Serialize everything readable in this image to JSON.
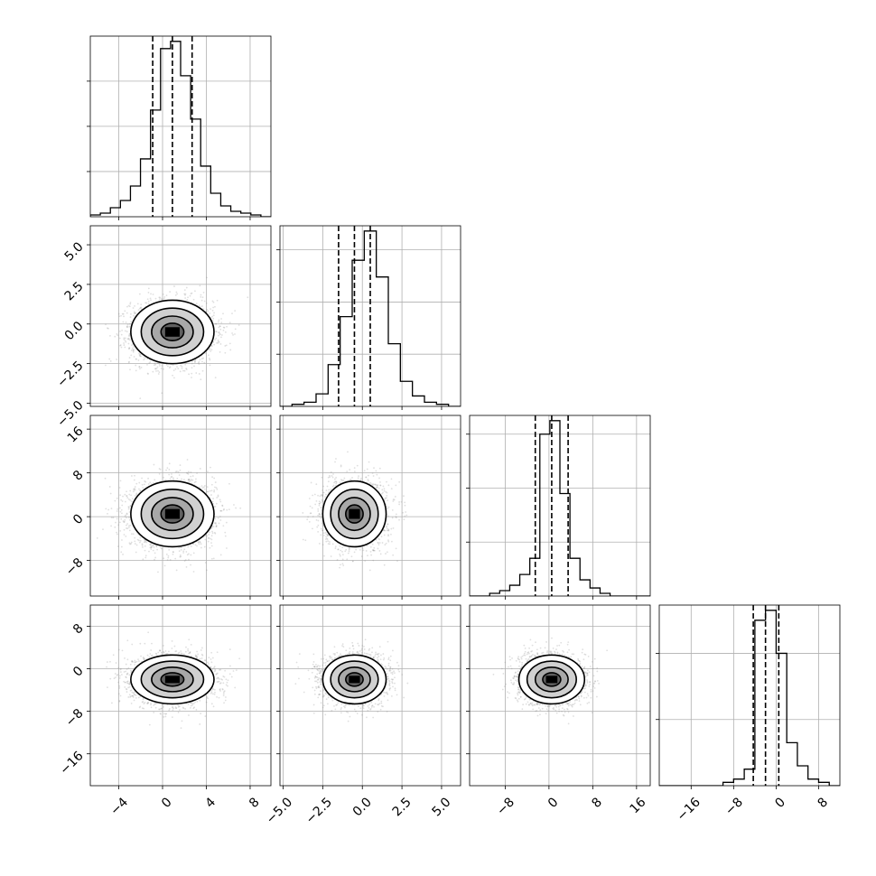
{
  "chart_data": {
    "type": "corner",
    "grid": true,
    "colors": {
      "ink": "#000000",
      "grid": "#b0b0b0",
      "scatter": "#8c8c8c"
    },
    "quantiles": [
      0.16,
      0.5,
      0.84
    ],
    "parameters": [
      {
        "range": [
          -6.6,
          9.9
        ],
        "ticks": [
          -4,
          0,
          4,
          8
        ],
        "tick_labels": [
          "−4",
          "0",
          "4",
          "8"
        ],
        "mean": 0.9,
        "sd": 1.9,
        "quantile_values": [
          -0.9,
          0.9,
          2.7
        ],
        "hist_counts": [
          1,
          2,
          5,
          9,
          17,
          32,
          59,
          93,
          97,
          78,
          54,
          28,
          13,
          6,
          3,
          2,
          1,
          0
        ]
      },
      {
        "range": [
          -5.2,
          6.2
        ],
        "ticks": [
          -5.0,
          -2.5,
          0.0,
          2.5,
          5.0
        ],
        "tick_labels": [
          "−5.0",
          "−2.5",
          "0.0",
          "2.5",
          "5.0"
        ],
        "mean": -0.5,
        "sd": 1.0,
        "quantile_values": [
          -1.5,
          -0.5,
          0.5
        ],
        "hist_counts": [
          0,
          1,
          2,
          6,
          20,
          43,
          70,
          84,
          62,
          30,
          12,
          5,
          2,
          1,
          0
        ]
      },
      {
        "range": [
          -14.5,
          18.5
        ],
        "ticks": [
          -8,
          0,
          8,
          16
        ],
        "tick_labels": [
          "−8",
          "0",
          "8",
          "16"
        ],
        "mean": 0.5,
        "sd": 3.0,
        "quantile_values": [
          -2.5,
          0.5,
          3.5
        ],
        "hist_counts": [
          0,
          0,
          1,
          2,
          4,
          8,
          14,
          60,
          65,
          38,
          14,
          6,
          3,
          1,
          0,
          0,
          0,
          0
        ]
      },
      {
        "range": [
          -22.0,
          12.0
        ],
        "ticks": [
          -16,
          -8,
          0,
          8
        ],
        "tick_labels": [
          "−16",
          "−8",
          "0",
          "8"
        ],
        "mean": -2.0,
        "sd": 2.3,
        "quantile_values": [
          -4.3,
          -2.0,
          0.5
        ],
        "hist_counts": [
          0,
          0,
          0,
          0,
          0,
          0,
          1,
          2,
          5,
          50,
          53,
          40,
          13,
          6,
          2,
          1,
          0
        ]
      }
    ],
    "row_tick_parameters": [
      1,
      2,
      3
    ],
    "column_tick_parameters": [
      0,
      1,
      2,
      3
    ]
  }
}
